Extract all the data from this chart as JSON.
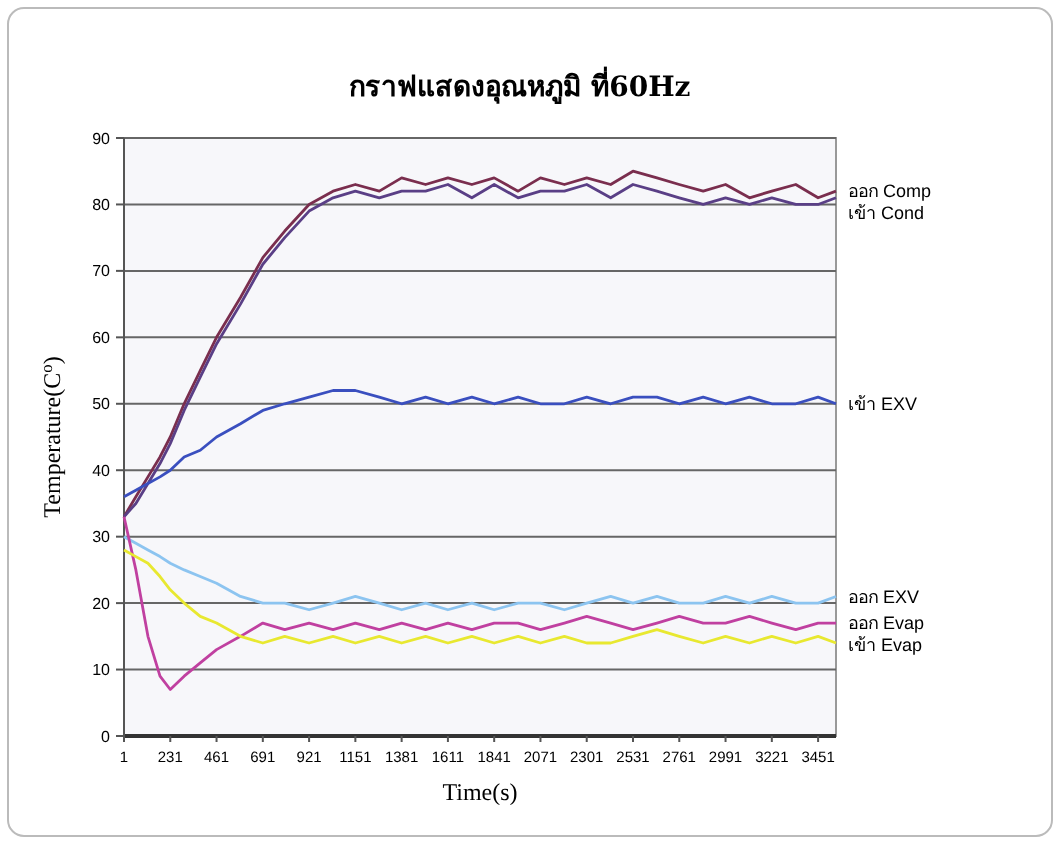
{
  "chart_data": {
    "type": "line",
    "title": "กราฟแสดงอุณหภูมิ ที่60Hz",
    "xlabel": "Time(s)",
    "ylabel": "Temperature(C$^{o}$)",
    "x": [
      1,
      60,
      120,
      180,
      231,
      300,
      380,
      461,
      580,
      691,
      800,
      921,
      1040,
      1151,
      1270,
      1381,
      1500,
      1611,
      1730,
      1841,
      1960,
      2071,
      2190,
      2301,
      2420,
      2531,
      2650,
      2761,
      2880,
      2991,
      3110,
      3221,
      3340,
      3451,
      3540
    ],
    "xlim": [
      1,
      3540
    ],
    "xticks": [
      1,
      231,
      461,
      691,
      921,
      1151,
      1381,
      1611,
      1841,
      2071,
      2301,
      2531,
      2761,
      2991,
      3221,
      3451
    ],
    "ylim": [
      0,
      90
    ],
    "yticks": [
      0,
      10,
      20,
      30,
      40,
      50,
      60,
      70,
      80,
      90
    ],
    "grid": "y",
    "marker": "none",
    "line_style": "solid",
    "series": [
      {
        "name": "ออก Comp",
        "color": "#7a2e4e",
        "values": [
          33,
          36,
          39,
          42,
          45,
          50,
          55,
          60,
          66,
          72,
          76,
          80,
          82,
          83,
          82,
          84,
          83,
          84,
          83,
          84,
          82,
          84,
          83,
          84,
          83,
          85,
          84,
          83,
          82,
          83,
          81,
          82,
          83,
          81,
          82
        ]
      },
      {
        "name": "เข้า Cond",
        "color": "#5a3f86",
        "values": [
          33,
          35,
          38,
          41,
          44,
          49,
          54,
          59,
          65,
          71,
          75,
          79,
          81,
          82,
          81,
          82,
          82,
          83,
          81,
          83,
          81,
          82,
          82,
          83,
          81,
          83,
          82,
          81,
          80,
          81,
          80,
          81,
          80,
          80,
          81
        ]
      },
      {
        "name": "เข้า EXV",
        "color": "#3a4fbf",
        "values": [
          36,
          37,
          38,
          39,
          40,
          42,
          43,
          45,
          47,
          49,
          50,
          51,
          52,
          52,
          51,
          50,
          51,
          50,
          51,
          50,
          51,
          50,
          50,
          51,
          50,
          51,
          51,
          50,
          51,
          50,
          51,
          50,
          50,
          51,
          50
        ]
      },
      {
        "name": "ออก EXV",
        "color": "#8cc4f0",
        "values": [
          30,
          29,
          28,
          27,
          26,
          25,
          24,
          23,
          21,
          20,
          20,
          19,
          20,
          21,
          20,
          19,
          20,
          19,
          20,
          19,
          20,
          20,
          19,
          20,
          21,
          20,
          21,
          20,
          20,
          21,
          20,
          21,
          20,
          20,
          21
        ]
      },
      {
        "name": "ออก Evap",
        "color": "#c040a0",
        "values": [
          33,
          25,
          15,
          9,
          7,
          9,
          11,
          13,
          15,
          17,
          16,
          17,
          16,
          17,
          16,
          17,
          16,
          17,
          16,
          17,
          17,
          16,
          17,
          18,
          17,
          16,
          17,
          18,
          17,
          17,
          18,
          17,
          16,
          17,
          17
        ]
      },
      {
        "name": "เข้า Evap",
        "color": "#e8e830",
        "values": [
          28,
          27,
          26,
          24,
          22,
          20,
          18,
          17,
          15,
          14,
          15,
          14,
          15,
          14,
          15,
          14,
          15,
          14,
          15,
          14,
          15,
          14,
          15,
          14,
          14,
          15,
          16,
          15,
          14,
          15,
          14,
          15,
          14,
          15,
          14
        ]
      }
    ]
  }
}
